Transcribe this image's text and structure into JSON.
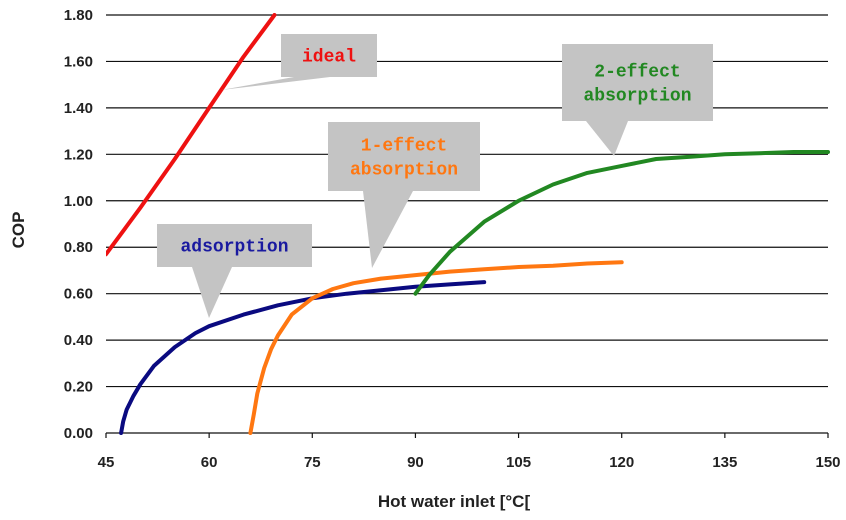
{
  "chart_data": {
    "type": "line",
    "title": "",
    "xlabel": "Hot water inlet [°C[",
    "ylabel": "COP",
    "xlim": [
      45,
      150
    ],
    "ylim": [
      0,
      1.8
    ],
    "xticks": [
      "45",
      "60",
      "75",
      "90",
      "105",
      "120",
      "135",
      "150"
    ],
    "yticks": [
      "0.00",
      "0.20",
      "0.40",
      "0.60",
      "0.80",
      "1.00",
      "1.20",
      "1.40",
      "1.60",
      "1.80"
    ],
    "grid": "horizontal",
    "series": [
      {
        "name": "ideal",
        "color": "#ee1111",
        "x": [
          45,
          50,
          55,
          60,
          65,
          69.5
        ],
        "y": [
          0.77,
          0.97,
          1.18,
          1.4,
          1.62,
          1.8
        ]
      },
      {
        "name": "adsorption",
        "color": "#0a0a80",
        "x": [
          47.2,
          47.5,
          48,
          49,
          50,
          52,
          55,
          58,
          60,
          65,
          70,
          75,
          80,
          85,
          90,
          95,
          100
        ],
        "y": [
          0.0,
          0.05,
          0.1,
          0.16,
          0.21,
          0.29,
          0.37,
          0.43,
          0.46,
          0.51,
          0.55,
          0.58,
          0.6,
          0.615,
          0.63,
          0.64,
          0.65
        ]
      },
      {
        "name": "1-effect absorption",
        "color": "#ff7711",
        "x": [
          66,
          66.5,
          67,
          68,
          69,
          70,
          72,
          75,
          78,
          81,
          85,
          90,
          95,
          100,
          105,
          110,
          115,
          120
        ],
        "y": [
          0.0,
          0.08,
          0.17,
          0.28,
          0.36,
          0.42,
          0.51,
          0.58,
          0.62,
          0.645,
          0.665,
          0.68,
          0.695,
          0.705,
          0.715,
          0.72,
          0.73,
          0.735
        ]
      },
      {
        "name": "2-effect absorption",
        "color": "#228822",
        "x": [
          90,
          92,
          95,
          100,
          105,
          110,
          115,
          120,
          125,
          130,
          135,
          140,
          145,
          150
        ],
        "y": [
          0.6,
          0.68,
          0.78,
          0.91,
          1.0,
          1.07,
          1.12,
          1.15,
          1.18,
          1.19,
          1.2,
          1.205,
          1.21,
          1.21
        ]
      }
    ],
    "annotations": [
      {
        "text_lines": [
          "ideal"
        ],
        "color": "#ee1111",
        "series": "ideal"
      },
      {
        "text_lines": [
          "adsorption"
        ],
        "color": "#1a1aa0",
        "series": "adsorption"
      },
      {
        "text_lines": [
          "1-effect",
          "absorption"
        ],
        "color": "#ff7711",
        "series": "1-effect absorption"
      },
      {
        "text_lines": [
          "2-effect",
          "absorption"
        ],
        "color": "#228822",
        "series": "2-effect absorption"
      }
    ]
  }
}
